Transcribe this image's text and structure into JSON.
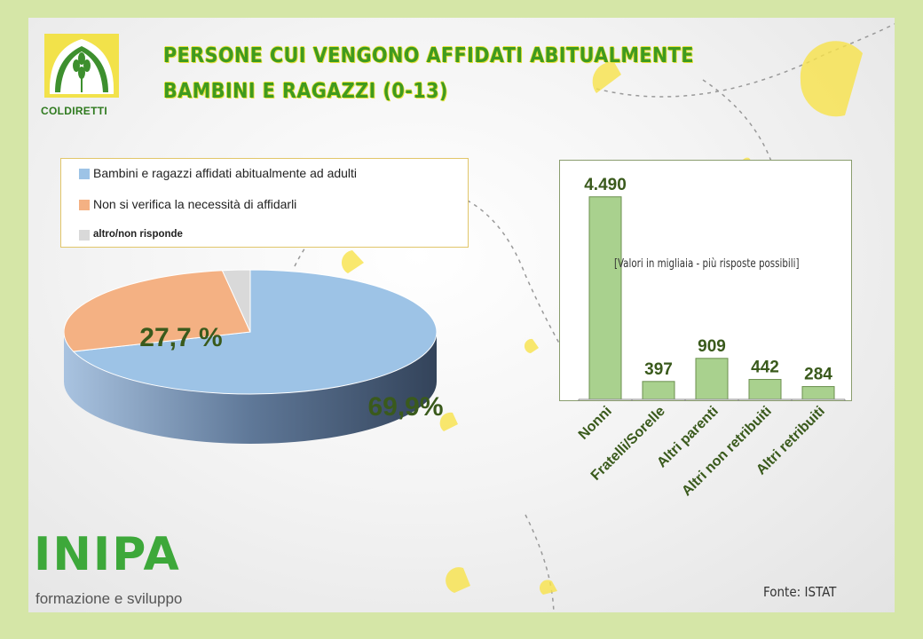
{
  "title": {
    "line1": "PERSONE CUI VENGONO AFFIDATI ABITUALMENTE",
    "line2": "BAMBINI E RAGAZZI (0-13)"
  },
  "logo": {
    "name": "COLDIRETTI"
  },
  "footer": {
    "brand": "INIPA",
    "tagline": "formazione e sviluppo",
    "source": "Fonte: ISTAT"
  },
  "colors": {
    "accent_title": "#3f9a1f",
    "pie_blue": "#9dc3e6",
    "pie_orange": "#f4b183",
    "pie_grey": "#d9d9d9",
    "bar_green": "#a9d18e"
  },
  "chart_data": [
    {
      "type": "pie",
      "categories": [
        "Bambini e ragazzi affidati abitualmente ad adulti",
        "Non si verifica la necessità di affidarli",
        "altro/non risponde"
      ],
      "values": [
        69.9,
        27.7,
        2.4
      ],
      "data_labels": [
        "69,9%",
        "27,7 %",
        ""
      ],
      "legend": "top-left"
    },
    {
      "type": "bar",
      "categories": [
        "Nonni",
        "Fratelli/Sorelle",
        "Altri parenti",
        "Altri  non retribuiti",
        "Altri  retribuiti"
      ],
      "values": [
        4490,
        397,
        909,
        442,
        284
      ],
      "data_labels": [
        "4.490",
        "397",
        "909",
        "442",
        "284"
      ],
      "annotation": "[Valori in migliaia - più risposte possibili]",
      "ylim": [
        0,
        4800
      ],
      "grid": false
    }
  ]
}
